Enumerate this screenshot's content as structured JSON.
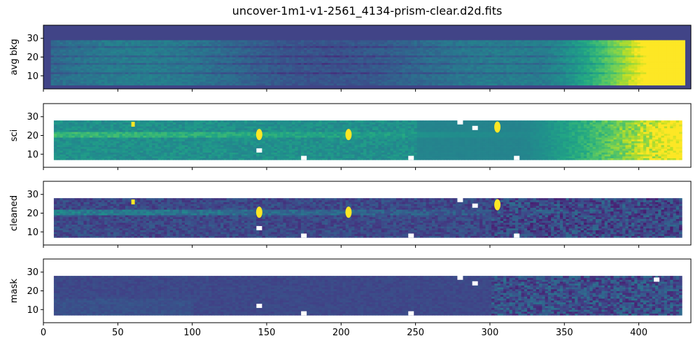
{
  "figure": {
    "title": "uncover-1m1-v1-2561_4134-prism-clear.d2d.fits"
  },
  "chart_data": {
    "type": "heatmap",
    "colormap": "viridis",
    "background_color": "#ffffff",
    "shared_x_axis": {
      "ticks": [
        0,
        50,
        100,
        150,
        200,
        250,
        300,
        350,
        400
      ],
      "tick_labels": [
        "0",
        "50",
        "100",
        "150",
        "200",
        "250",
        "300",
        "350",
        "400"
      ],
      "xlim": [
        0,
        435
      ]
    },
    "panels": [
      {
        "ylabel": "avg bkg",
        "ylim": [
          3,
          37
        ],
        "yticks": [
          10,
          20,
          30
        ],
        "ytick_labels": [
          "10",
          "20",
          "30"
        ],
        "background_fill": "#414487",
        "data_extent": {
          "x": [
            5,
            430
          ],
          "y": [
            5,
            29
          ]
        },
        "stripes_y": [
          11,
          16,
          20,
          25
        ],
        "features": [
          {
            "kind": "bright-gradient",
            "x": [
              330,
              430
            ]
          }
        ]
      },
      {
        "ylabel": "sci",
        "ylim": [
          3,
          37
        ],
        "yticks": [
          10,
          20,
          30
        ],
        "ytick_labels": [
          "10",
          "20",
          "30"
        ],
        "data_extent": {
          "x": [
            7,
            428
          ],
          "y": [
            7,
            28
          ]
        },
        "trace_y": 20,
        "features": [
          {
            "kind": "blob",
            "x": 145,
            "y": 20.5
          },
          {
            "kind": "blob",
            "x": 205,
            "y": 20.5
          },
          {
            "kind": "blob",
            "x": 305,
            "y": 24.5
          },
          {
            "kind": "dot",
            "x": 60,
            "y": 26
          },
          {
            "kind": "bright-gradient",
            "x": [
              320,
              428
            ]
          }
        ],
        "masked_holes": [
          {
            "x": 145,
            "y": 12
          },
          {
            "x": 175,
            "y": 8
          },
          {
            "x": 247,
            "y": 8
          },
          {
            "x": 290,
            "y": 24
          },
          {
            "x": 280,
            "y": 27
          },
          {
            "x": 318,
            "y": 8
          }
        ]
      },
      {
        "ylabel": "cleaned",
        "ylim": [
          3,
          37
        ],
        "yticks": [
          10,
          20,
          30
        ],
        "ytick_labels": [
          "10",
          "20",
          "30"
        ],
        "data_extent": {
          "x": [
            7,
            428
          ],
          "y": [
            7,
            28
          ]
        },
        "trace_y": 20,
        "features": [
          {
            "kind": "blob",
            "x": 145,
            "y": 20.5
          },
          {
            "kind": "blob",
            "x": 205,
            "y": 20.5
          },
          {
            "kind": "blob",
            "x": 305,
            "y": 24.5
          },
          {
            "kind": "dot",
            "x": 60,
            "y": 26
          }
        ],
        "masked_holes": [
          {
            "x": 145,
            "y": 12
          },
          {
            "x": 175,
            "y": 8
          },
          {
            "x": 247,
            "y": 8
          },
          {
            "x": 290,
            "y": 24
          },
          {
            "x": 280,
            "y": 27
          },
          {
            "x": 318,
            "y": 8
          }
        ]
      },
      {
        "ylabel": "mask",
        "ylim": [
          3,
          37
        ],
        "yticks": [
          10,
          20,
          30
        ],
        "ytick_labels": [
          "10",
          "20",
          "30"
        ],
        "data_extent": {
          "x": [
            7,
            428
          ],
          "y": [
            7,
            28
          ]
        },
        "features": [],
        "masked_holes": [
          {
            "x": 145,
            "y": 12
          },
          {
            "x": 175,
            "y": 8
          },
          {
            "x": 247,
            "y": 8
          },
          {
            "x": 290,
            "y": 24
          },
          {
            "x": 280,
            "y": 27
          },
          {
            "x": 412,
            "y": 26
          }
        ]
      }
    ]
  }
}
